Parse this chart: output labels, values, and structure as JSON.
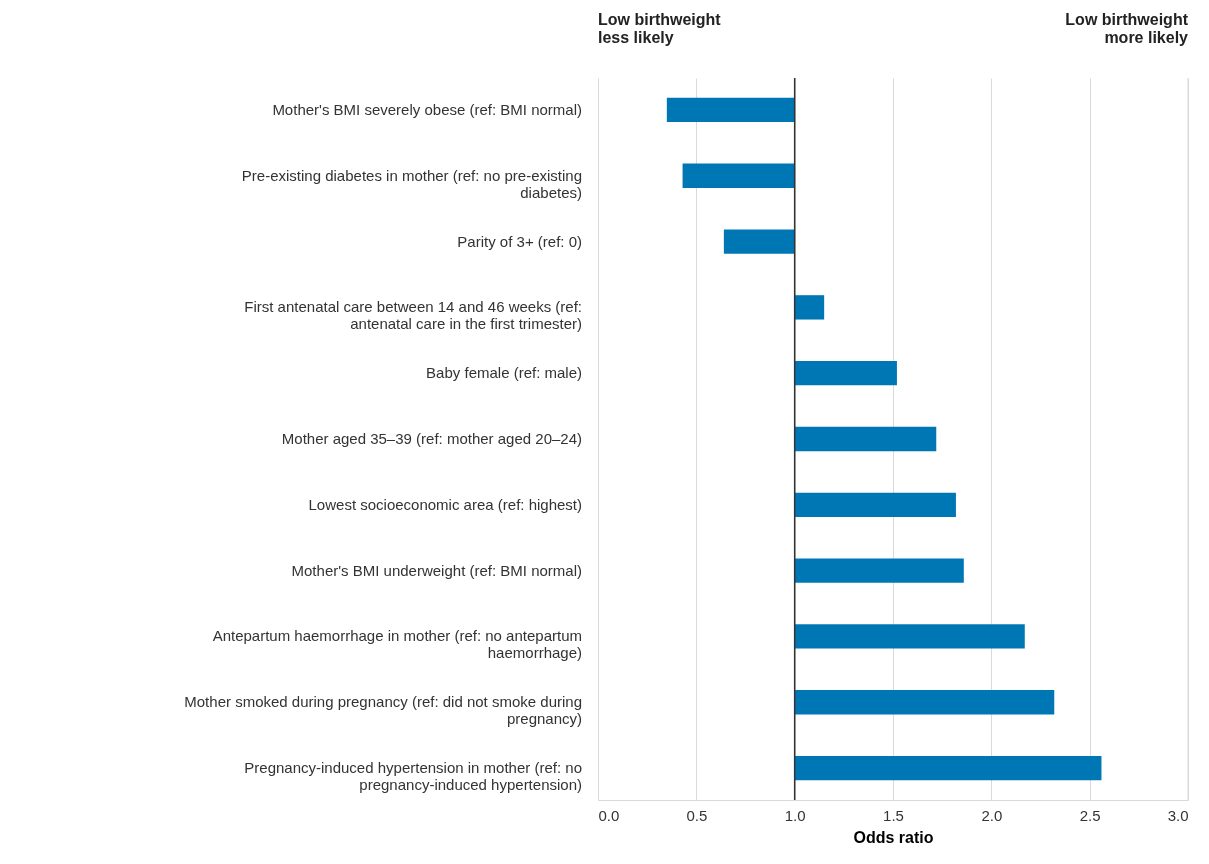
{
  "chart_data": {
    "type": "bar",
    "orientation": "horizontal",
    "xlabel": "Odds ratio",
    "categories": [
      "Mother's BMI severely obese (ref: BMI normal)",
      "Pre-existing diabetes in mother (ref: no pre-existing diabetes)",
      "Parity of 3+ (ref: 0)",
      "First antenatal care between 14 and 46 weeks (ref: antenatal care in the first trimester)",
      "Baby female (ref: male)",
      "Mother aged 35–39 (ref: mother aged 20–24)",
      "Lowest socioeconomic area (ref: highest)",
      "Mother's BMI underweight (ref: BMI normal)",
      "Antepartum haemorrhage in mother (ref: no antepartum haemorrhage)",
      "Mother smoked during pregnancy (ref: did not smoke during pregnancy)",
      "Pregnancy-induced hypertension in mother (ref: no pregnancy-induced hypertension)"
    ],
    "base": [
      1,
      1,
      1,
      1,
      1,
      1,
      1,
      1,
      1,
      1,
      1
    ],
    "values": [
      -0.65,
      -0.57,
      -0.36,
      0.15,
      0.52,
      0.72,
      0.82,
      0.86,
      1.17,
      1.32,
      1.56
    ],
    "color": "#0077b5",
    "xlim": [
      0,
      3
    ],
    "xticks": [
      {
        "value": 0,
        "label": "0.0"
      },
      {
        "value": 0.5,
        "label": "0.5"
      },
      {
        "value": 1,
        "label": "1.0"
      },
      {
        "value": 1.5,
        "label": "1.5"
      },
      {
        "value": 2,
        "label": "2.0"
      },
      {
        "value": 2.5,
        "label": "2.5"
      },
      {
        "value": 3,
        "label": "3.0"
      }
    ],
    "grid": "x",
    "ref_lines": [
      {
        "axis": "x",
        "value": 1,
        "label": null,
        "color": "#333333"
      }
    ],
    "annotations": [
      "Low birthweight less likely",
      "Low birthweight more likely"
    ]
  }
}
